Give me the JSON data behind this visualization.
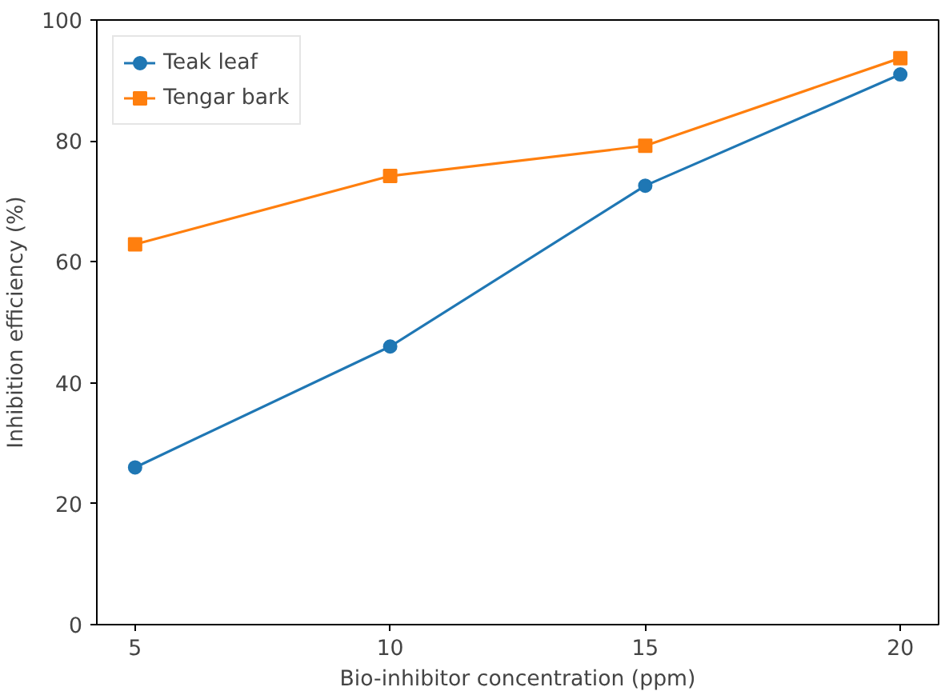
{
  "chart_data": {
    "type": "line",
    "xlabel": "Bio-inhibitor concentration (ppm)",
    "ylabel": "Inhibition efficiency (%)",
    "x": [
      5,
      10,
      15,
      20
    ],
    "series": [
      {
        "name": "Teak leaf",
        "color": "#1f77b4",
        "marker": "circle",
        "values": [
          26,
          46,
          72.6,
          91
        ]
      },
      {
        "name": "Tengar bark",
        "color": "#ff7f0e",
        "marker": "square",
        "values": [
          62.9,
          74.2,
          79.2,
          93.7
        ]
      }
    ],
    "xlim": [
      4.25,
      20.75
    ],
    "ylim": [
      0,
      100
    ],
    "xticks": [
      5,
      10,
      15,
      20
    ],
    "yticks": [
      0,
      20,
      40,
      60,
      80,
      100
    ],
    "grid": false,
    "legend": "top left",
    "line_style": "solid"
  }
}
